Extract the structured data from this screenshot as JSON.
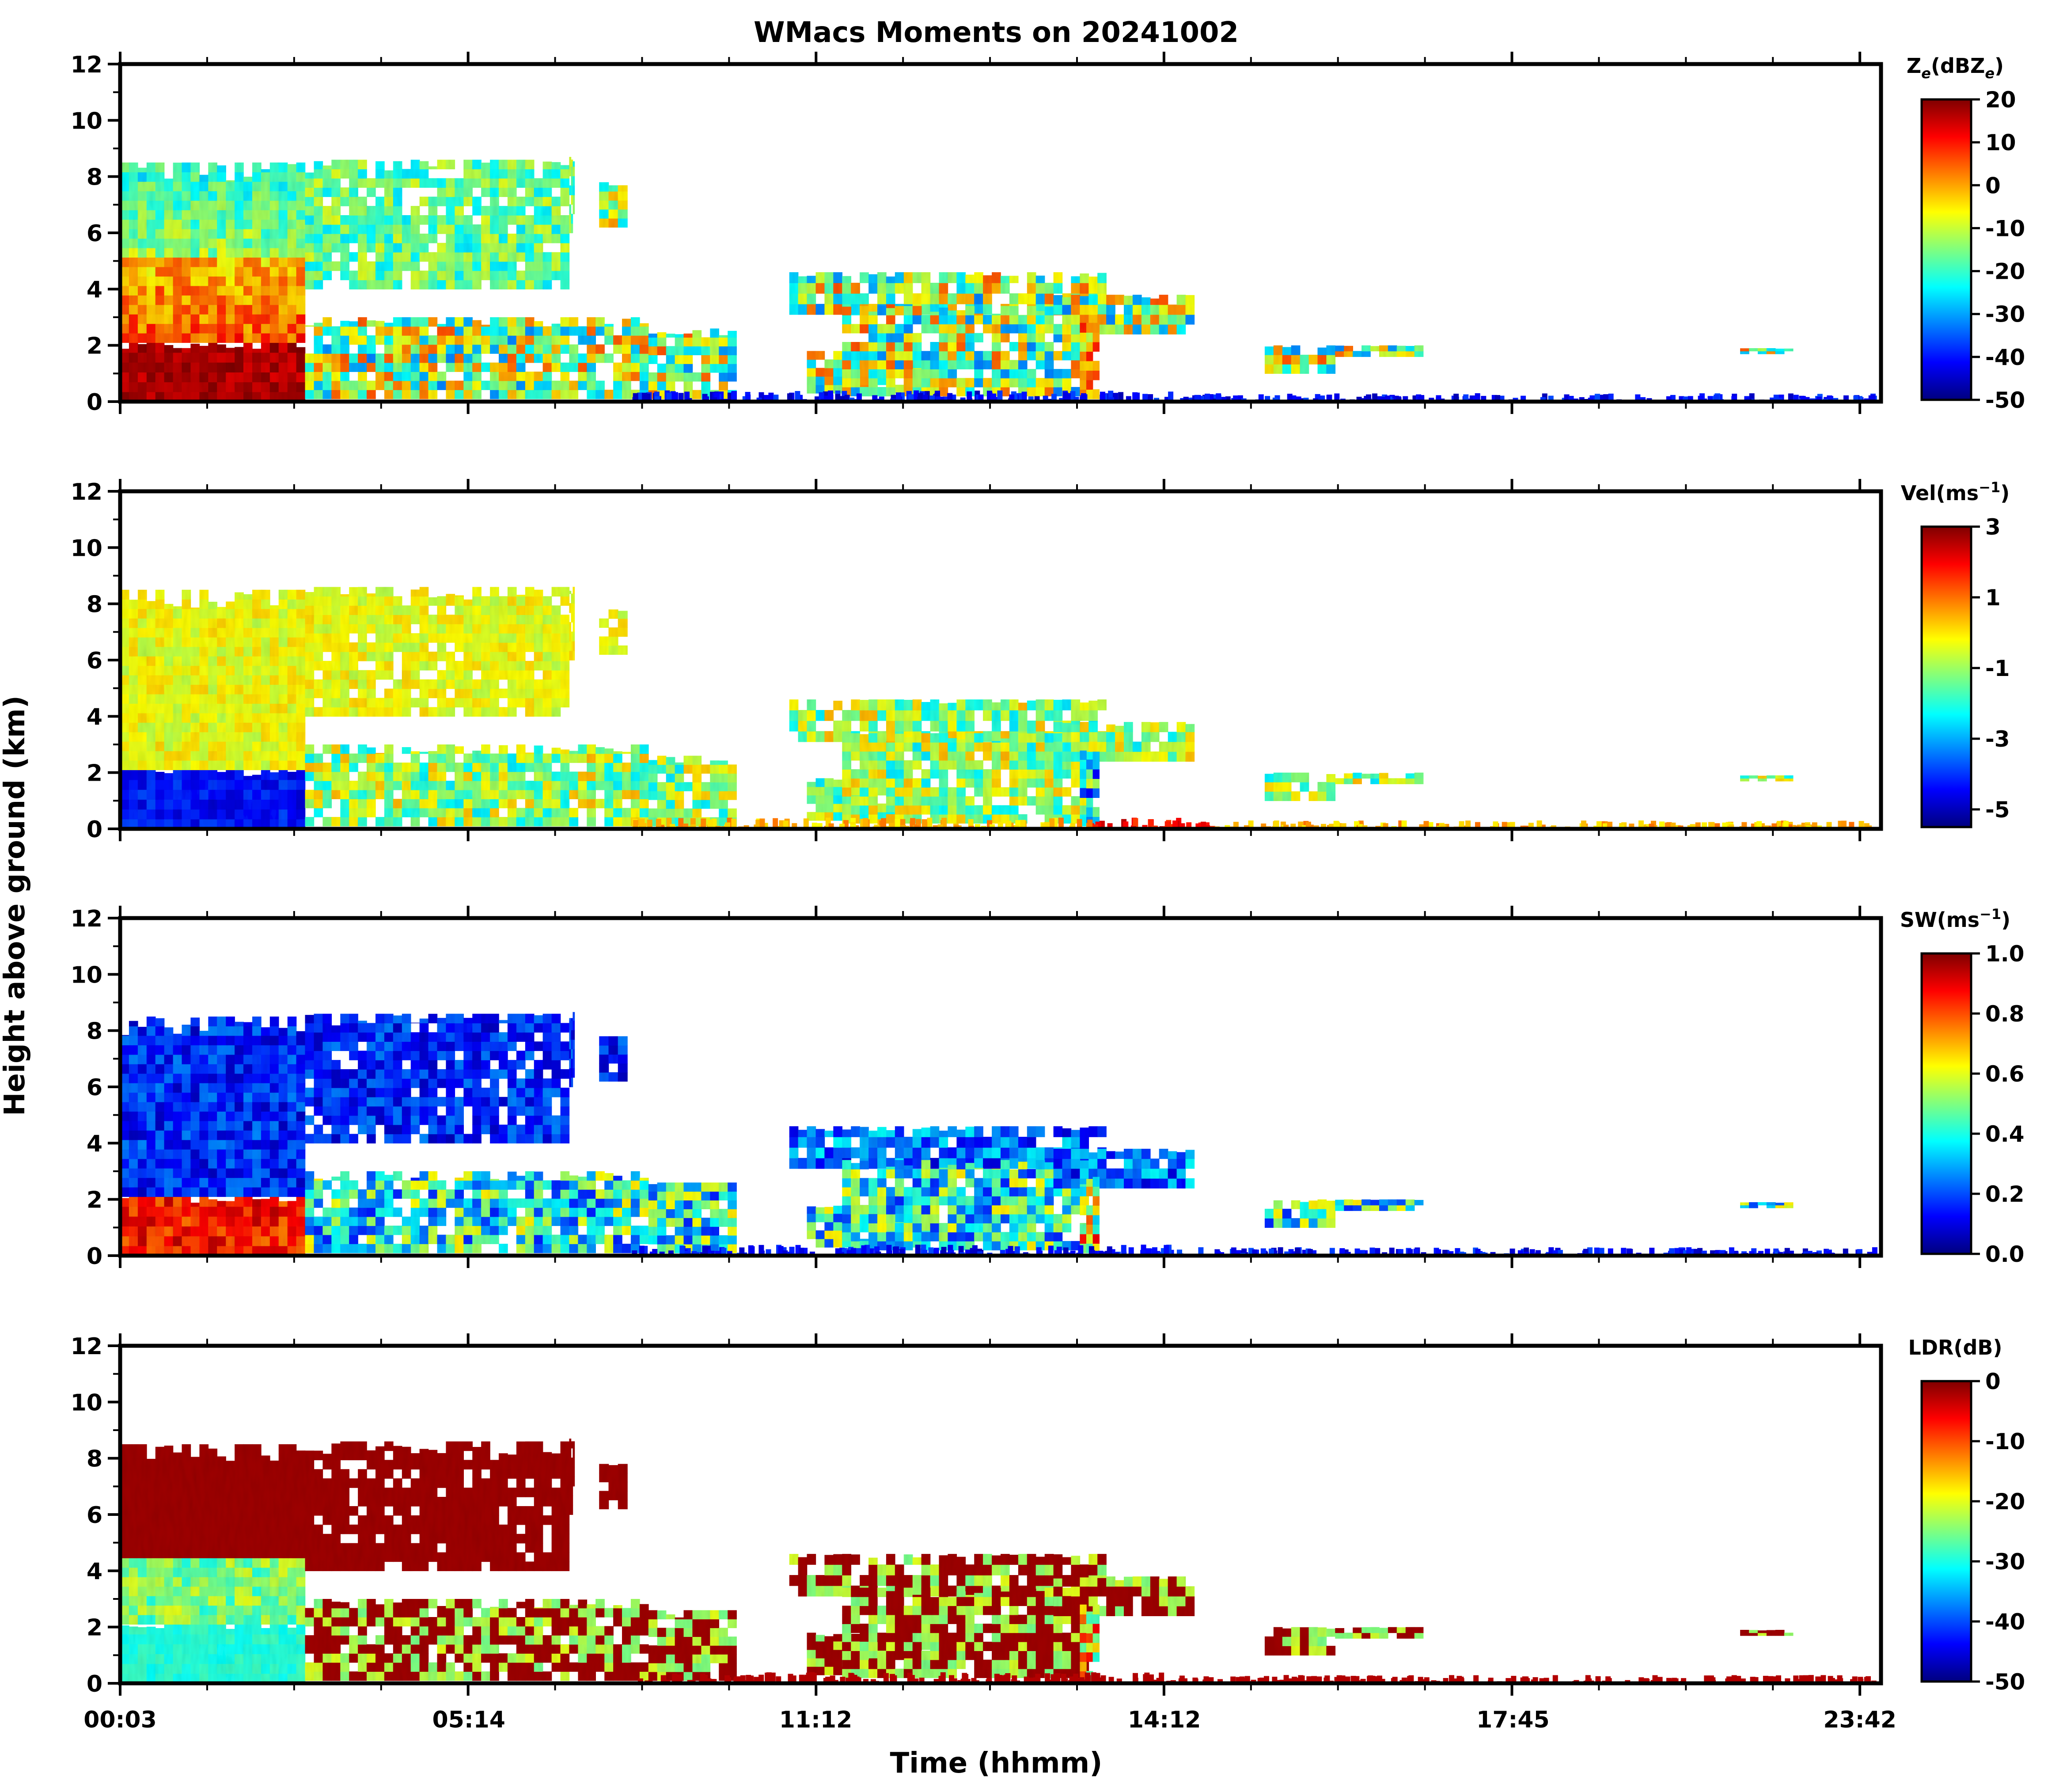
{
  "chart_data": {
    "type": "heatmap",
    "title": "WMacs Moments on 20241002",
    "xlabel": "Time (hhmm)",
    "ylabel": "Height above ground (km)",
    "x_tick_labels": [
      "00:03",
      "05:14",
      "11:12",
      "14:12",
      "17:45",
      "23:42"
    ],
    "ylim": [
      0,
      12
    ],
    "y_ticks": [
      "0",
      "2",
      "4",
      "6",
      "8",
      "10",
      "12"
    ],
    "panels": [
      {
        "name": "reflectivity",
        "colorbar_label_main": "Z",
        "colorbar_label_sub": "e",
        "colorbar_label_paren_open": "(dBZ",
        "colorbar_label_paren_sub": "e",
        "colorbar_label_paren_close": ")",
        "colorbar_ticks": [
          "20",
          "10",
          "0",
          "-10",
          "-20",
          "-30",
          "-40",
          "-50"
        ],
        "colorbar_range": [
          -50,
          20
        ]
      },
      {
        "name": "velocity",
        "colorbar_label_main": "Vel(ms",
        "colorbar_label_sup": "−1",
        "colorbar_label_close": ")",
        "colorbar_ticks": [
          "3",
          "1",
          "-1",
          "-3",
          "-5"
        ],
        "colorbar_range": [
          -5.5,
          3
        ]
      },
      {
        "name": "spectrum-width",
        "colorbar_label_main": "SW(ms",
        "colorbar_label_sup": "−1",
        "colorbar_label_close": ")",
        "colorbar_ticks": [
          "1.0",
          "0.8",
          "0.6",
          "0.4",
          "0.2",
          "0.0"
        ],
        "colorbar_range": [
          0,
          1
        ]
      },
      {
        "name": "ldr",
        "colorbar_label_main": "LDR(dB)",
        "colorbar_ticks": [
          "0",
          "-10",
          "-20",
          "-30",
          "-40",
          "-50"
        ],
        "colorbar_range": [
          -50,
          0
        ]
      }
    ]
  },
  "colors": {
    "jet": [
      "#00007f",
      "#0000ff",
      "#007fff",
      "#00ffff",
      "#7fff7f",
      "#ffff00",
      "#ff7f00",
      "#ff0000",
      "#7f0000"
    ]
  }
}
